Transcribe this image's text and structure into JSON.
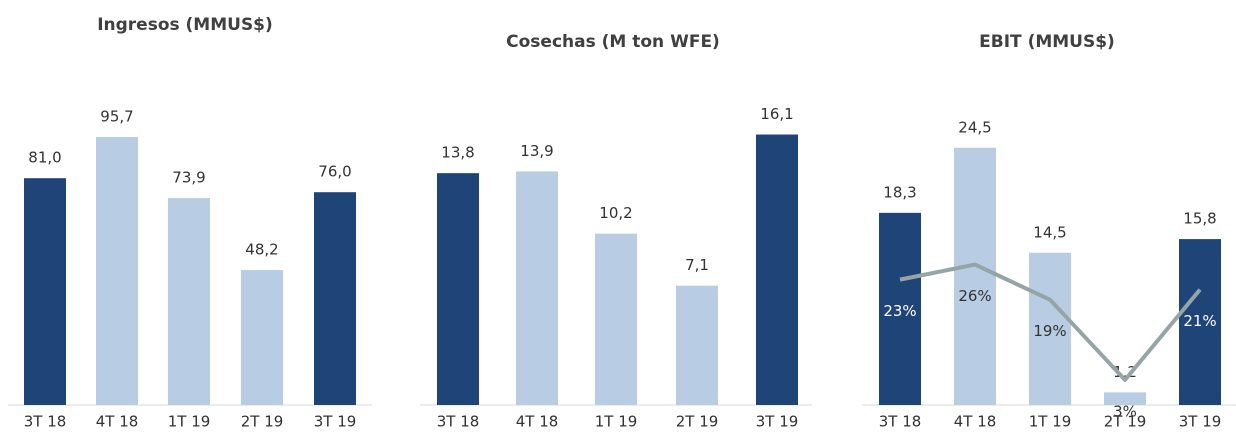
{
  "chart_data": [
    {
      "type": "bar",
      "title": "Ingresos (MMUS$)",
      "categories": [
        "3T 18",
        "4T 18",
        "1T 19",
        "2T 19",
        "3T 19"
      ],
      "values": [
        81.0,
        95.7,
        73.9,
        48.2,
        76.0
      ],
      "value_labels": [
        "81,0",
        "95,7",
        "73,9",
        "48,2",
        "76,0"
      ],
      "colors": [
        "#1f4478",
        "#b8cce4",
        "#b8cce4",
        "#b8cce4",
        "#1f4478"
      ],
      "ylim": [
        0,
        120
      ]
    },
    {
      "type": "bar",
      "title": "Cosechas (M ton WFE)",
      "categories": [
        "3T 18",
        "4T 18",
        "1T 19",
        "2T 19",
        "3T 19"
      ],
      "values": [
        13.8,
        13.9,
        10.2,
        7.1,
        16.1
      ],
      "value_labels": [
        "13,8",
        "13,9",
        "10,2",
        "7,1",
        "16,1"
      ],
      "colors": [
        "#1f4478",
        "#b8cce4",
        "#b8cce4",
        "#b8cce4",
        "#1f4478"
      ],
      "ylim": [
        0,
        20
      ]
    },
    {
      "type": "bar",
      "title": "EBIT (MMUS$)",
      "categories": [
        "3T 18",
        "4T 18",
        "1T 19",
        "2T 19",
        "3T 19"
      ],
      "values": [
        18.3,
        24.5,
        14.5,
        1.2,
        15.8
      ],
      "value_labels": [
        "18,3",
        "24,5",
        "14,5",
        "1,2",
        "15,8"
      ],
      "colors": [
        "#1f4478",
        "#b8cce4",
        "#b8cce4",
        "#b8cce4",
        "#1f4478"
      ],
      "ylim": [
        0,
        32
      ],
      "line": {
        "values": [
          23,
          26,
          19,
          3,
          21
        ],
        "value_labels": [
          "23%",
          "26%",
          "19%",
          "3%",
          "21%"
        ],
        "color": "#95a5a6",
        "axis": "y2"
      },
      "y2lim": [
        -2,
        65
      ]
    }
  ]
}
